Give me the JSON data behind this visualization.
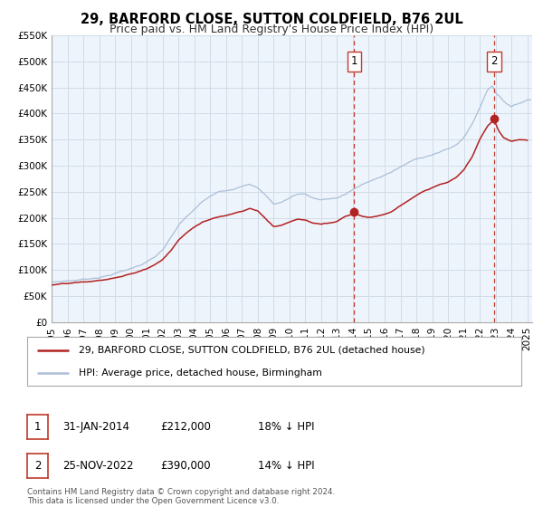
{
  "title": "29, BARFORD CLOSE, SUTTON COLDFIELD, B76 2UL",
  "subtitle": "Price paid vs. HM Land Registry's House Price Index (HPI)",
  "ylim": [
    0,
    550000
  ],
  "xlim_start": 1995.0,
  "xlim_end": 2025.3,
  "yticks": [
    0,
    50000,
    100000,
    150000,
    200000,
    250000,
    300000,
    350000,
    400000,
    450000,
    500000,
    550000
  ],
  "ytick_labels": [
    "£0",
    "£50K",
    "£100K",
    "£150K",
    "£200K",
    "£250K",
    "£300K",
    "£350K",
    "£400K",
    "£450K",
    "£500K",
    "£550K"
  ],
  "xticks": [
    1995,
    1996,
    1997,
    1998,
    1999,
    2000,
    2001,
    2002,
    2003,
    2004,
    2005,
    2006,
    2007,
    2008,
    2009,
    2010,
    2011,
    2012,
    2013,
    2014,
    2015,
    2016,
    2017,
    2018,
    2019,
    2020,
    2021,
    2022,
    2023,
    2024,
    2025
  ],
  "hpi_color": "#aabfd8",
  "price_color": "#b22222",
  "marker_color": "#b22222",
  "vline_color": "#c0392b",
  "grid_color": "#d0dce8",
  "bg_color": "#eef4fb",
  "sale1_x": 2014.083,
  "sale1_y": 212000,
  "sale2_x": 2022.9,
  "sale2_y": 390000,
  "legend_label_price": "29, BARFORD CLOSE, SUTTON COLDFIELD, B76 2UL (detached house)",
  "legend_label_hpi": "HPI: Average price, detached house, Birmingham",
  "table_row1": [
    "1",
    "31-JAN-2014",
    "£212,000",
    "18% ↓ HPI"
  ],
  "table_row2": [
    "2",
    "25-NOV-2022",
    "£390,000",
    "14% ↓ HPI"
  ],
  "footer": "Contains HM Land Registry data © Crown copyright and database right 2024.\nThis data is licensed under the Open Government Licence v3.0.",
  "title_fontsize": 10.5,
  "subtitle_fontsize": 9,
  "tick_fontsize": 7.5,
  "legend_fontsize": 8
}
